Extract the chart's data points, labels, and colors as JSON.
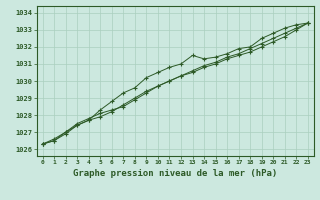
{
  "xlabel": "Graphe pression niveau de la mer (hPa)",
  "bg_color": "#cce8df",
  "grid_color": "#aacfbf",
  "line_color": "#2d5a27",
  "x_values": [
    0,
    1,
    2,
    3,
    4,
    5,
    6,
    7,
    8,
    9,
    10,
    11,
    12,
    13,
    14,
    15,
    16,
    17,
    18,
    19,
    20,
    21,
    22,
    23
  ],
  "series1": [
    1026.3,
    1026.5,
    1026.9,
    1027.4,
    1027.7,
    1028.3,
    1028.8,
    1029.3,
    1029.6,
    1030.2,
    1030.5,
    1030.8,
    1031.0,
    1031.5,
    1031.3,
    1031.4,
    1031.6,
    1031.9,
    1032.0,
    1032.5,
    1032.8,
    1033.1,
    1033.3,
    1033.4
  ],
  "series2": [
    1026.3,
    1026.5,
    1027.0,
    1027.5,
    1027.8,
    1028.1,
    1028.3,
    1028.5,
    1028.9,
    1029.3,
    1029.7,
    1030.0,
    1030.3,
    1030.5,
    1030.8,
    1031.0,
    1031.3,
    1031.5,
    1031.7,
    1032.0,
    1032.3,
    1032.6,
    1033.0,
    1033.4
  ],
  "series3": [
    1026.3,
    1026.6,
    1027.0,
    1027.4,
    1027.7,
    1027.9,
    1028.2,
    1028.6,
    1029.0,
    1029.4,
    1029.7,
    1030.0,
    1030.3,
    1030.6,
    1030.9,
    1031.1,
    1031.4,
    1031.6,
    1031.9,
    1032.2,
    1032.5,
    1032.8,
    1033.1,
    1033.4
  ],
  "ylim_min": 1025.6,
  "ylim_max": 1034.4,
  "yticks": [
    1026,
    1027,
    1028,
    1029,
    1030,
    1031,
    1032,
    1033,
    1034
  ],
  "xtick_fontsize": 4.5,
  "ytick_fontsize": 5.0,
  "xlabel_fontsize": 6.5,
  "marker": "+"
}
